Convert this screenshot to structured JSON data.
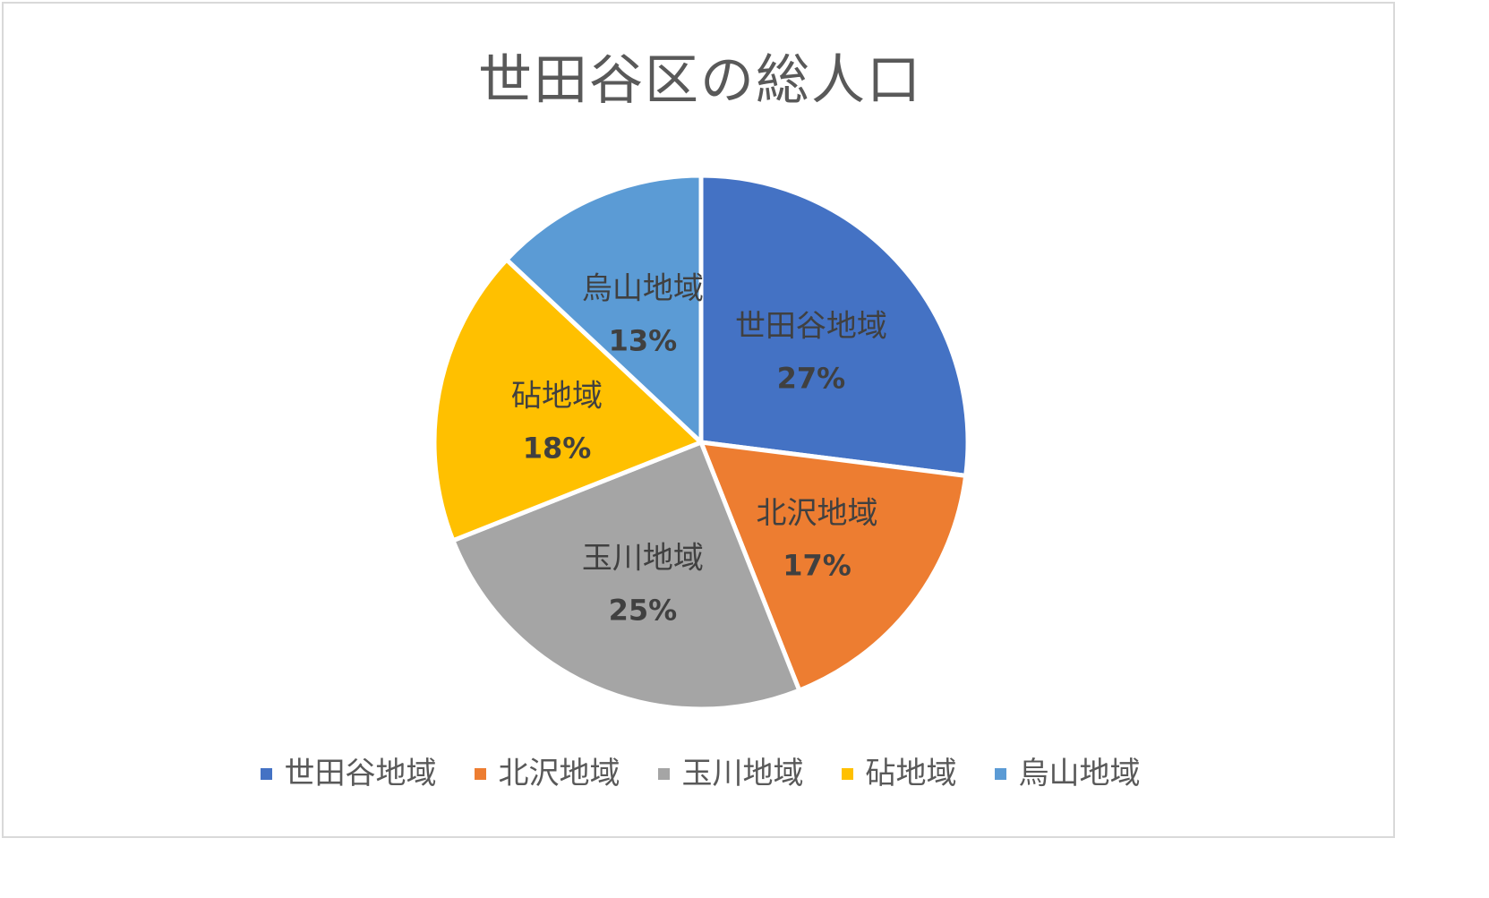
{
  "chart_data": {
    "type": "pie",
    "title": "世田谷区の総人口",
    "categories": [
      "世田谷地域",
      "北沢地域",
      "玉川地域",
      "砧地域",
      "烏山地域"
    ],
    "values": [
      27,
      17,
      25,
      18,
      13
    ],
    "value_labels": [
      "27%",
      "17%",
      "25%",
      "18%",
      "13%"
    ],
    "colors": [
      "#4472c4",
      "#ed7d31",
      "#a5a5a5",
      "#ffc000",
      "#5b9bd5"
    ],
    "start_angle": "12 o'clock, clockwise",
    "data_labels": "inside, category name and percent",
    "legend": "bottom"
  }
}
